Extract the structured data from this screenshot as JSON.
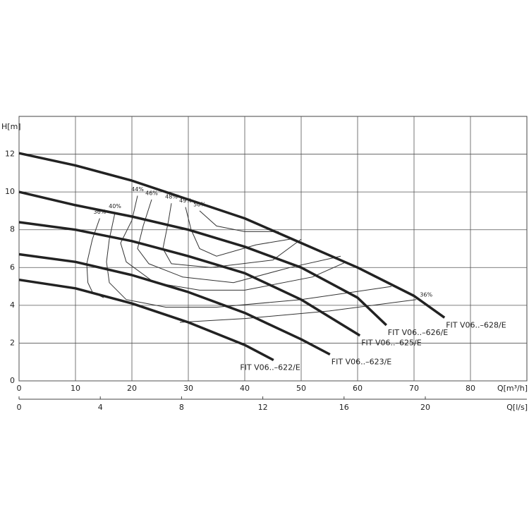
{
  "chart_data": {
    "type": "line",
    "y_label": "H[m]",
    "x_label": "Q[m³/h]",
    "x2_label": "Q[l/s]",
    "xlim": [
      0,
      90
    ],
    "xticks": [
      0,
      10,
      20,
      30,
      40,
      50,
      60,
      70,
      80
    ],
    "ylim": [
      0,
      14
    ],
    "yticks": [
      0,
      2,
      4,
      6,
      8,
      10,
      12
    ],
    "x2lim": [
      0,
      25
    ],
    "x2ticks": [
      0,
      4,
      8,
      12,
      16,
      20
    ],
    "grid": true,
    "series": [
      {
        "name": "FIT V06..–628/E",
        "color": "#222222",
        "x": [
          0,
          10,
          20,
          30,
          40,
          50,
          60,
          70,
          75.4
        ],
        "values": [
          12.05,
          11.4,
          10.6,
          9.6,
          8.6,
          7.3,
          6.0,
          4.5,
          3.35
        ]
      },
      {
        "name": "FIT V06..–626/E",
        "color": "#222222",
        "x": [
          0,
          10,
          20,
          30,
          40,
          50,
          60,
          65.1
        ],
        "values": [
          10.0,
          9.3,
          8.7,
          8.0,
          7.1,
          6.0,
          4.4,
          2.95
        ]
      },
      {
        "name": "FIT V06..–625/E",
        "color": "#222222",
        "x": [
          0,
          10,
          20,
          30,
          40,
          50,
          60.4
        ],
        "values": [
          8.4,
          8.0,
          7.4,
          6.6,
          5.7,
          4.3,
          2.4
        ]
      },
      {
        "name": "FIT V06..–623/E",
        "color": "#222222",
        "x": [
          0,
          10,
          20,
          30,
          40,
          50,
          55.1
        ],
        "values": [
          6.7,
          6.3,
          5.6,
          4.7,
          3.6,
          2.2,
          1.4
        ]
      },
      {
        "name": "FIT V06..–622/E",
        "color": "#222222",
        "x": [
          0,
          10,
          20,
          30,
          40,
          45.1
        ],
        "values": [
          5.35,
          4.9,
          4.1,
          3.1,
          1.9,
          1.1
        ]
      }
    ],
    "efficiency_curves": [
      {
        "name": "36%",
        "color": "#333333",
        "x": [
          14.3,
          13,
          12,
          12.2,
          13,
          15,
          null,
          28.5,
          40,
          55,
          70.4
        ],
        "values": [
          8.6,
          7.5,
          6.2,
          5.2,
          4.7,
          4.4,
          null,
          3.1,
          3.3,
          3.7,
          4.3
        ]
      },
      {
        "name": "40%",
        "color": "#333333",
        "x": [
          17,
          16,
          15.5,
          16,
          19,
          26,
          35,
          50,
          66
        ],
        "values": [
          8.9,
          7.5,
          6.3,
          5.2,
          4.3,
          3.9,
          3.9,
          4.3,
          5.0
        ]
      },
      {
        "name": "44%",
        "color": "#333333",
        "x": [
          21,
          20,
          18,
          19,
          24,
          32,
          40,
          52,
          58
        ],
        "values": [
          9.8,
          8.5,
          7.3,
          6.3,
          5.2,
          4.8,
          4.8,
          5.5,
          6.3
        ]
      },
      {
        "name": "46%",
        "color": "#333333",
        "x": [
          23.5,
          22,
          21,
          23,
          29,
          38,
          48,
          57
        ],
        "values": [
          9.6,
          8.2,
          7.0,
          6.2,
          5.5,
          5.2,
          6.0,
          6.6
        ]
      },
      {
        "name": "48%",
        "color": "#333333",
        "x": [
          27,
          26.5,
          25.5,
          27,
          34,
          45,
          50
        ],
        "values": [
          9.4,
          8.5,
          7.0,
          6.2,
          6.0,
          6.4,
          7.5
        ]
      },
      {
        "name": "49%",
        "color": "#333333",
        "x": [
          29.5,
          30.5,
          32,
          35,
          42,
          48
        ],
        "values": [
          9.2,
          8.0,
          7.0,
          6.6,
          7.2,
          7.5
        ]
      },
      {
        "name": "50%",
        "color": "#333333",
        "x": [
          32,
          35,
          40,
          46
        ],
        "values": [
          9.0,
          8.2,
          7.9,
          7.9
        ]
      }
    ]
  }
}
